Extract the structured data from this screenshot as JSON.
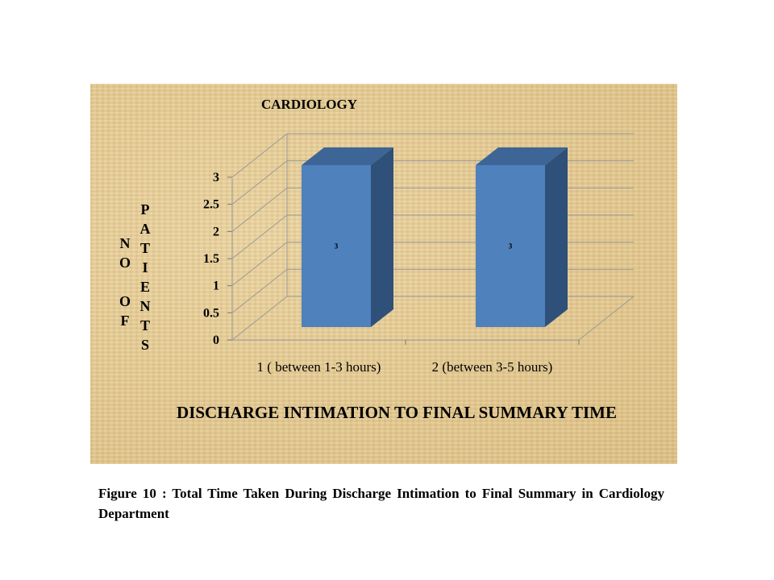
{
  "chart_data": {
    "type": "bar",
    "title": "CARDIOLOGY",
    "categories": [
      "1 ( between 1-3 hours)",
      "2 (between 3-5 hours)"
    ],
    "series": [
      {
        "values": [
          3,
          3
        ],
        "data_labels": [
          "3",
          "3"
        ]
      }
    ],
    "ylabel": "NO OF PATIENTS",
    "ylabel_columns": [
      "NO OF",
      "PATIENTS"
    ],
    "xlabel": "DISCHARGE INTIMATION TO FINAL SUMMARY TIME",
    "ylim": [
      0,
      3
    ],
    "yticks": [
      "0",
      "0.5",
      "1",
      "1.5",
      "2",
      "2.5",
      "3"
    ],
    "grid": true,
    "legend": "none",
    "style": "3d",
    "bar_color": "#4f81bd"
  },
  "caption": "Figure 10 : Total Time Taken During Discharge Intimation to Final Summary in Cardiology Department"
}
